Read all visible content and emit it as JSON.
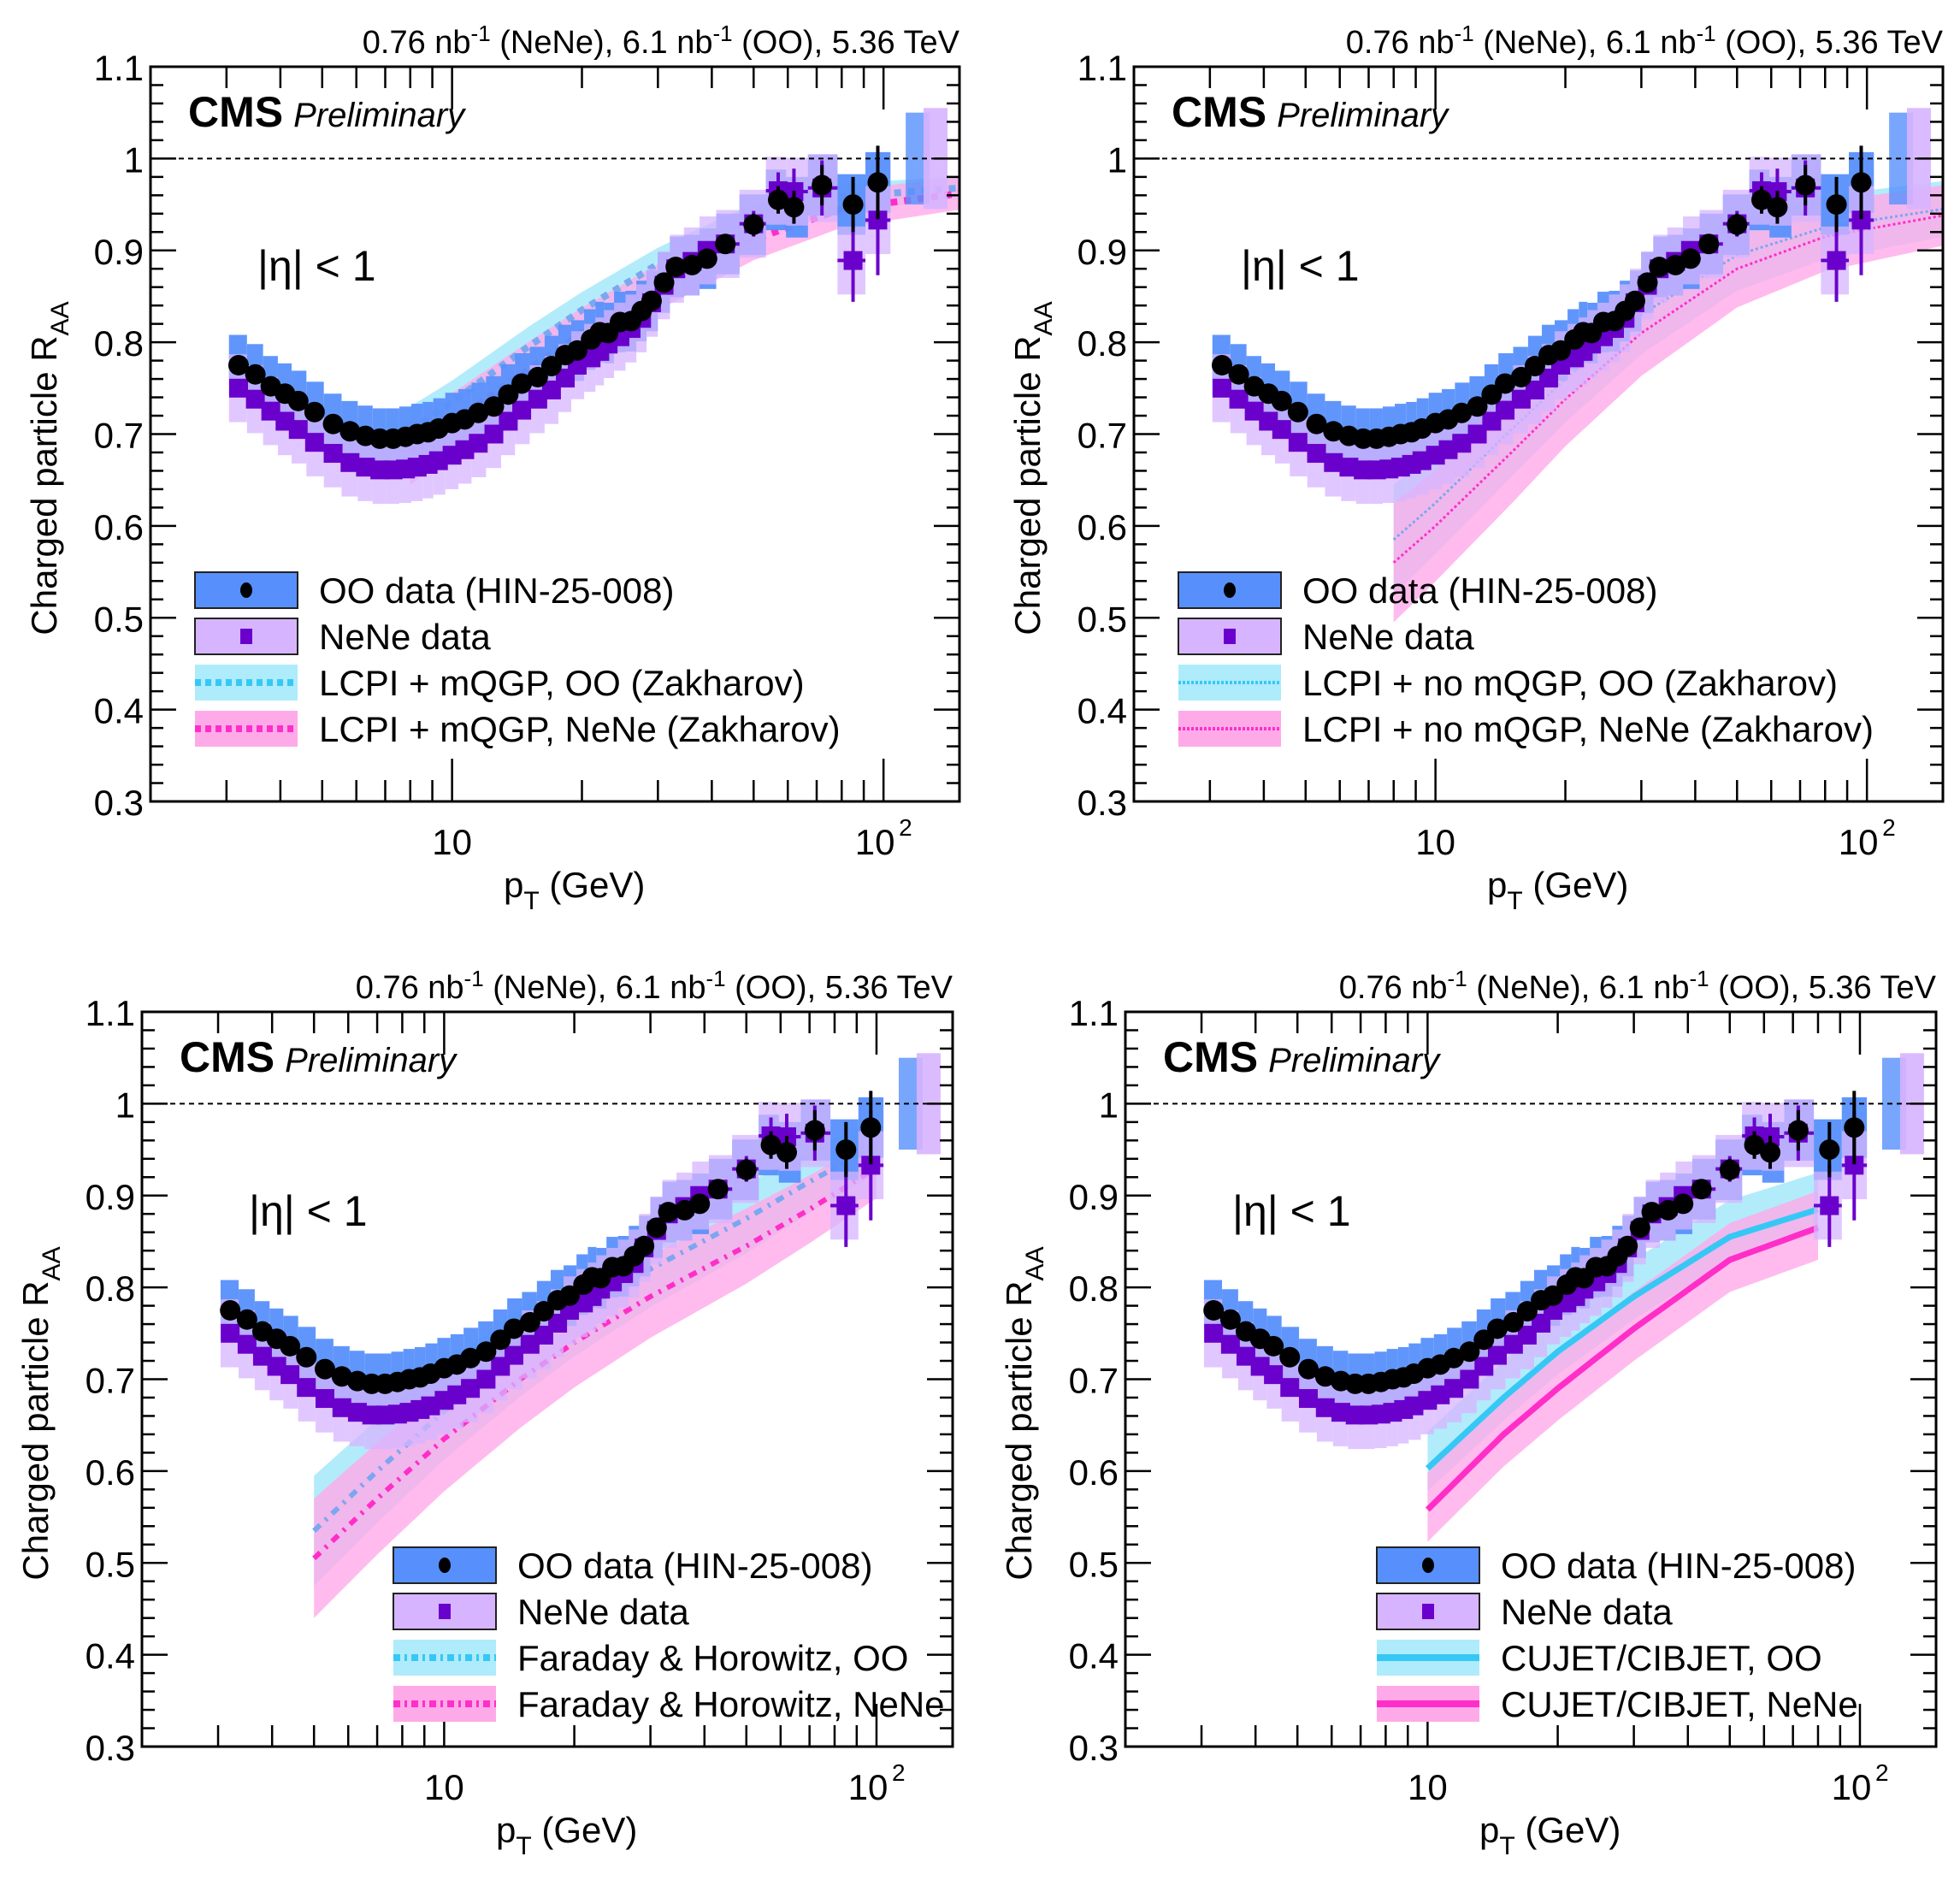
{
  "figure": {
    "lumi_label": "0.76 nb⁻¹ (NeNe), 6.1 nb⁻¹ (OO), 5.36 TeV",
    "lumi_parts": [
      "0.76 nb",
      "-1",
      " (NeNe), 6.1 nb",
      "-1",
      " (OO), 5.36 TeV"
    ],
    "experiment": "CMS",
    "status": "Preliminary",
    "selection": "|η| < 1",
    "ylabel_main": "Charged particle R",
    "ylabel_sub": "AA",
    "xlabel_main": "p",
    "xlabel_sub": "T",
    "xlabel_unit": " (GeV)"
  },
  "colors": {
    "oo_band": "#5790fc",
    "oo_marker": "#000000",
    "nene_band": "#d7b4ff",
    "nene_marker": "#6a00cc",
    "model_oo": "#36c8f5",
    "model_oo_band": "#aeebfb",
    "model_nene": "#ff2ec8",
    "model_nene_band": "#ffaae8"
  },
  "chart_data": [
    {
      "type": "scatter",
      "panel": "top-left",
      "title": "",
      "xlabel": "pT (GeV)",
      "ylabel": "Charged particle RAA",
      "xscale": "log",
      "xlim": [
        2,
        150
      ],
      "ylim": [
        0.3,
        1.1
      ],
      "xticks": [
        "10",
        "10^2"
      ],
      "yticks": [
        "0.3",
        "0.4",
        "0.5",
        "0.6",
        "0.7",
        "0.8",
        "0.9",
        "1",
        "1.1"
      ],
      "reference_line": 1.0,
      "legend_position": "bottom-left",
      "legend": [
        "OO data (HIN-25-008)",
        "NeNe data",
        "LCPI + mQGP, OO (Zakharov)",
        "LCPI + mQGP, NeNe (Zakharov)"
      ],
      "model_style": "dotted",
      "models": [
        {
          "name": "LCPI + mQGP, OO (Zakharov)",
          "x": [
            8,
            10,
            15,
            20,
            30,
            50,
            80,
            150
          ],
          "y": [
            0.705,
            0.735,
            0.795,
            0.835,
            0.885,
            0.935,
            0.958,
            0.968
          ],
          "band": 0.025
        },
        {
          "name": "LCPI + mQGP, NeNe (Zakharov)",
          "x": [
            8,
            10,
            15,
            20,
            30,
            50,
            80,
            150
          ],
          "y": [
            0.68,
            0.712,
            0.77,
            0.81,
            0.86,
            0.912,
            0.945,
            0.962
          ],
          "band": 0.035
        }
      ]
    },
    {
      "type": "scatter",
      "panel": "top-right",
      "title": "",
      "xlabel": "pT (GeV)",
      "ylabel": "Charged particle RAA",
      "xscale": "log",
      "xlim": [
        2,
        150
      ],
      "ylim": [
        0.3,
        1.1
      ],
      "xticks": [
        "10",
        "10^2"
      ],
      "yticks": [
        "0.3",
        "0.4",
        "0.5",
        "0.6",
        "0.7",
        "0.8",
        "0.9",
        "1",
        "1.1"
      ],
      "reference_line": 1.0,
      "legend_position": "bottom-left",
      "legend": [
        "OO data (HIN-25-008)",
        "NeNe data",
        "LCPI + no mQGP, OO (Zakharov)",
        "LCPI + no mQGP, NeNe (Zakharov)"
      ],
      "model_style": "fine-dotted",
      "models": [
        {
          "name": "LCPI + no mQGP, OO (Zakharov)",
          "x": [
            8,
            10,
            15,
            20,
            30,
            50,
            80,
            150
          ],
          "y": [
            0.585,
            0.625,
            0.705,
            0.76,
            0.83,
            0.895,
            0.925,
            0.945
          ],
          "band": 0.06
        },
        {
          "name": "LCPI + no mQGP, NeNe (Zakharov)",
          "x": [
            8,
            10,
            15,
            20,
            30,
            50,
            80,
            150
          ],
          "y": [
            0.56,
            0.6,
            0.68,
            0.738,
            0.81,
            0.88,
            0.915,
            0.938
          ],
          "band": 0.065
        }
      ]
    },
    {
      "type": "scatter",
      "panel": "bottom-left",
      "title": "",
      "xlabel": "pT (GeV)",
      "ylabel": "Charged particle RAA",
      "xscale": "log",
      "xlim": [
        2,
        150
      ],
      "ylim": [
        0.3,
        1.1
      ],
      "xticks": [
        "10",
        "10^2"
      ],
      "yticks": [
        "0.3",
        "0.4",
        "0.5",
        "0.6",
        "0.7",
        "0.8",
        "0.9",
        "1",
        "1.1"
      ],
      "reference_line": 1.0,
      "legend_position": "bottom-right",
      "legend": [
        "OO data (HIN-25-008)",
        "NeNe data",
        "Faraday & Horowitz, OO",
        "Faraday & Horowitz, NeNe"
      ],
      "model_style": "dash-dot",
      "models": [
        {
          "name": "Faraday & Horowitz, OO",
          "x": [
            5,
            7,
            10,
            15,
            20,
            30,
            50,
            70,
            100
          ],
          "y": [
            0.535,
            0.6,
            0.665,
            0.73,
            0.77,
            0.82,
            0.875,
            0.915,
            0.955
          ],
          "band": 0.06
        },
        {
          "name": "Faraday & Horowitz, NeNe",
          "x": [
            5,
            7,
            10,
            15,
            20,
            30,
            50,
            70,
            100
          ],
          "y": [
            0.505,
            0.57,
            0.635,
            0.7,
            0.74,
            0.79,
            0.845,
            0.885,
            0.93
          ],
          "band": 0.065
        }
      ]
    },
    {
      "type": "scatter",
      "panel": "bottom-right",
      "title": "",
      "xlabel": "pT (GeV)",
      "ylabel": "Charged particle RAA",
      "xscale": "log",
      "xlim": [
        2,
        150
      ],
      "ylim": [
        0.3,
        1.1
      ],
      "xticks": [
        "10",
        "10^2"
      ],
      "yticks": [
        "0.3",
        "0.4",
        "0.5",
        "0.6",
        "0.7",
        "0.8",
        "0.9",
        "1",
        "1.1"
      ],
      "reference_line": 1.0,
      "legend_position": "bottom-right",
      "legend": [
        "OO data (HIN-25-008)",
        "NeNe data",
        "CUJET/CIBJET, OO",
        "CUJET/CIBJET, NeNe"
      ],
      "model_style": "solid",
      "models": [
        {
          "name": "CUJET/CIBJET, OO",
          "x": [
            10,
            15,
            20,
            30,
            50,
            80
          ],
          "y": [
            0.603,
            0.68,
            0.73,
            0.79,
            0.855,
            0.885
          ],
          "band_lo": 0.025,
          "band_hi": 0.04
        },
        {
          "name": "CUJET/CIBJET, NeNe",
          "x": [
            10,
            15,
            20,
            30,
            50,
            80
          ],
          "y": [
            0.558,
            0.64,
            0.69,
            0.755,
            0.83,
            0.865
          ],
          "band_lo": 0.035,
          "band_hi": 0.04
        }
      ]
    }
  ],
  "series_data": {
    "OO": {
      "name": "OO data (HIN-25-008)",
      "x": [
        3.2,
        3.5,
        3.8,
        4.1,
        4.4,
        4.8,
        5.3,
        5.8,
        6.3,
        6.8,
        7.3,
        7.8,
        8.3,
        8.8,
        9.3,
        10.0,
        10.7,
        11.5,
        12.5,
        13.5,
        14.5,
        15.8,
        17.0,
        18.3,
        19.5,
        21.0,
        22.0,
        23.0,
        24.5,
        26.0,
        27.5,
        29.0,
        31.0,
        33.0,
        36.0,
        39.0,
        43.0,
        50.0,
        57.0,
        62.0,
        72.0,
        85.0,
        97.0
      ],
      "y": [
        0.775,
        0.765,
        0.752,
        0.744,
        0.736,
        0.724,
        0.711,
        0.703,
        0.698,
        0.695,
        0.695,
        0.697,
        0.7,
        0.702,
        0.706,
        0.712,
        0.716,
        0.723,
        0.73,
        0.743,
        0.755,
        0.762,
        0.774,
        0.786,
        0.791,
        0.803,
        0.811,
        0.81,
        0.822,
        0.823,
        0.834,
        0.845,
        0.865,
        0.882,
        0.884,
        0.891,
        0.907,
        0.928,
        0.955,
        0.947,
        0.971,
        0.95,
        0.974
      ],
      "stat": [
        0.002,
        0.002,
        0.002,
        0.002,
        0.002,
        0.002,
        0.002,
        0.002,
        0.002,
        0.002,
        0.002,
        0.002,
        0.002,
        0.002,
        0.002,
        0.002,
        0.002,
        0.002,
        0.002,
        0.002,
        0.002,
        0.002,
        0.002,
        0.002,
        0.002,
        0.002,
        0.002,
        0.002,
        0.003,
        0.003,
        0.003,
        0.003,
        0.004,
        0.004,
        0.005,
        0.006,
        0.008,
        0.012,
        0.015,
        0.018,
        0.022,
        0.03,
        0.04
      ],
      "syst": 0.033,
      "extra_syst_box": {
        "x": 120,
        "lo": 0.95,
        "hi": 1.05
      }
    },
    "NeNe": {
      "name": "NeNe data",
      "x": [
        3.2,
        3.5,
        3.8,
        4.1,
        4.4,
        4.8,
        5.3,
        5.8,
        6.3,
        6.8,
        7.3,
        7.8,
        8.3,
        8.8,
        9.3,
        10.0,
        10.7,
        11.5,
        12.5,
        13.5,
        14.5,
        15.8,
        17.0,
        18.3,
        19.5,
        21.0,
        22.0,
        23.0,
        24.5,
        26.0,
        27.5,
        29.0,
        31.0,
        33.0,
        36.0,
        39.0,
        43.0,
        50.0,
        57.0,
        62.0,
        72.0,
        85.0,
        97.0
      ],
      "y": [
        0.75,
        0.738,
        0.725,
        0.714,
        0.705,
        0.691,
        0.679,
        0.669,
        0.664,
        0.661,
        0.661,
        0.662,
        0.664,
        0.667,
        0.671,
        0.677,
        0.683,
        0.69,
        0.7,
        0.714,
        0.726,
        0.738,
        0.748,
        0.761,
        0.775,
        0.783,
        0.79,
        0.798,
        0.806,
        0.815,
        0.826,
        0.843,
        0.862,
        0.88,
        0.888,
        0.9,
        0.907,
        0.929,
        0.965,
        0.964,
        0.968,
        0.889,
        0.933
      ],
      "stat": [
        0.002,
        0.002,
        0.002,
        0.002,
        0.002,
        0.002,
        0.002,
        0.002,
        0.002,
        0.002,
        0.002,
        0.002,
        0.002,
        0.002,
        0.002,
        0.002,
        0.002,
        0.002,
        0.002,
        0.002,
        0.002,
        0.003,
        0.003,
        0.003,
        0.003,
        0.003,
        0.003,
        0.003,
        0.004,
        0.004,
        0.004,
        0.005,
        0.005,
        0.006,
        0.007,
        0.008,
        0.01,
        0.014,
        0.02,
        0.025,
        0.03,
        0.045,
        0.06
      ],
      "syst": 0.037,
      "extra_syst_box": {
        "x": 132,
        "lo": 0.945,
        "hi": 1.055
      }
    }
  }
}
